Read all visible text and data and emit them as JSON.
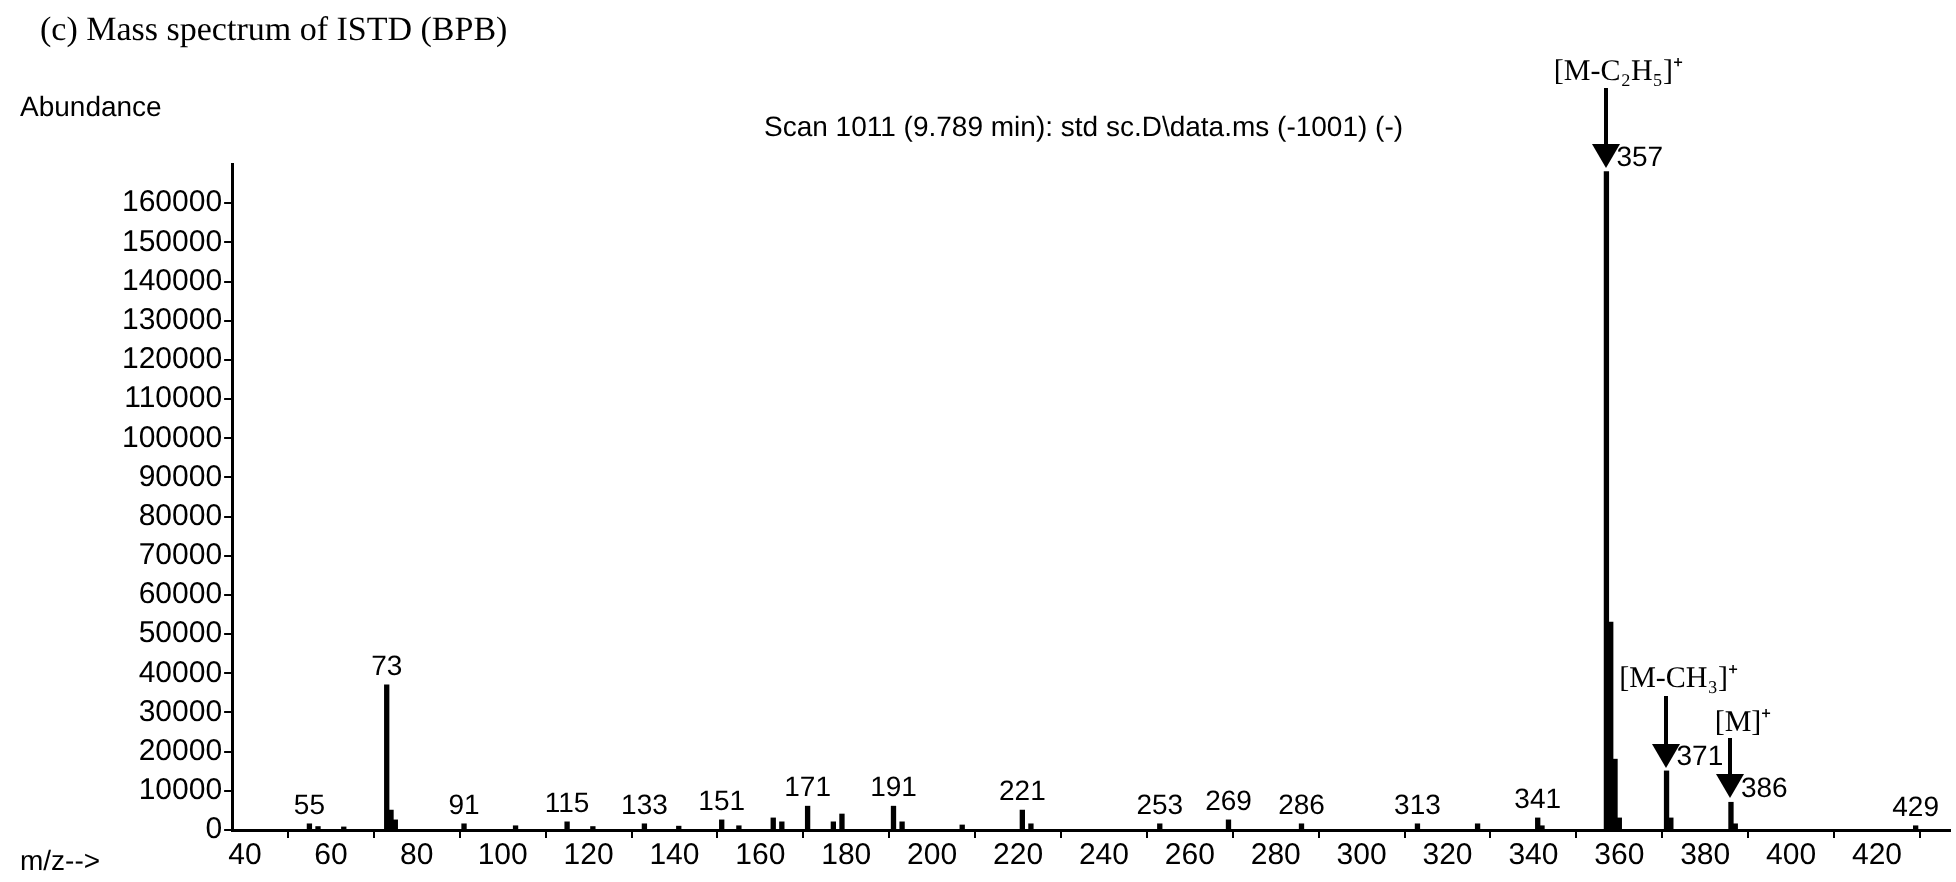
{
  "chart_data": {
    "type": "bar",
    "title": "(c) Mass spectrum of ISTD (BPB)",
    "subtitle": "Scan 1011 (9.789 min): std sc.D\\data.ms (-1001) (-)",
    "xlabel": "m/z-->",
    "ylabel": "Abundance",
    "x": [
      55,
      57,
      63,
      73,
      74,
      75,
      91,
      103,
      115,
      121,
      133,
      141,
      151,
      155,
      163,
      165,
      171,
      177,
      179,
      191,
      193,
      207,
      221,
      223,
      253,
      269,
      286,
      313,
      327,
      341,
      342,
      357,
      358,
      359,
      360,
      371,
      372,
      386,
      387,
      429
    ],
    "series": [
      {
        "color": "#000000",
        "values": [
          1500,
          800,
          700,
          37000,
          5000,
          2500,
          1500,
          1000,
          2000,
          800,
          1500,
          900,
          2500,
          1000,
          3000,
          2000,
          6000,
          2000,
          4000,
          6000,
          2000,
          1200,
          5000,
          1500,
          1500,
          2500,
          1500,
          1500,
          1500,
          3000,
          1000,
          168000,
          53000,
          18000,
          3000,
          15000,
          3000,
          7000,
          1500,
          1000
        ]
      }
    ],
    "xlim": [
      37,
      437
    ],
    "xticks": [
      40,
      60,
      80,
      100,
      120,
      140,
      160,
      180,
      200,
      220,
      240,
      260,
      280,
      300,
      320,
      340,
      360,
      380,
      400,
      420
    ],
    "ylim": [
      0,
      170000
    ],
    "yticks": [
      0,
      10000,
      20000,
      30000,
      40000,
      50000,
      60000,
      70000,
      80000,
      90000,
      100000,
      110000,
      120000,
      130000,
      140000,
      150000,
      160000
    ],
    "grid": false,
    "legend": false,
    "annotations": [
      {
        "text": "55",
        "x": 55,
        "y": 1500
      },
      {
        "text": "73",
        "x": 73,
        "y": 37000
      },
      {
        "text": "91",
        "x": 91,
        "y": 1500
      },
      {
        "text": "115",
        "x": 115,
        "y": 2000
      },
      {
        "text": "133",
        "x": 133,
        "y": 1500
      },
      {
        "text": "151",
        "x": 151,
        "y": 2500
      },
      {
        "text": "171",
        "x": 171,
        "y": 6000
      },
      {
        "text": "191",
        "x": 191,
        "y": 6000
      },
      {
        "text": "221",
        "x": 221,
        "y": 5000
      },
      {
        "text": "253",
        "x": 253,
        "y": 1500
      },
      {
        "text": "269",
        "x": 269,
        "y": 2500
      },
      {
        "text": "286",
        "x": 286,
        "y": 1500
      },
      {
        "text": "313",
        "x": 313,
        "y": 1500
      },
      {
        "text": "341",
        "x": 341,
        "y": 3000
      },
      {
        "text": "357",
        "x": 357,
        "y": 168000
      },
      {
        "text": "371",
        "x": 371,
        "y": 15000
      },
      {
        "text": "386",
        "x": 386,
        "y": 7000
      },
      {
        "text": "429",
        "x": 429,
        "y": 1000
      },
      {
        "text": "[M-C₂H₅]⁺",
        "x": 357,
        "y": 168000
      },
      {
        "text": "[M-CH₃]⁺",
        "x": 371,
        "y": 15000
      },
      {
        "text": "[M]⁺",
        "x": 386,
        "y": 7000
      }
    ]
  }
}
